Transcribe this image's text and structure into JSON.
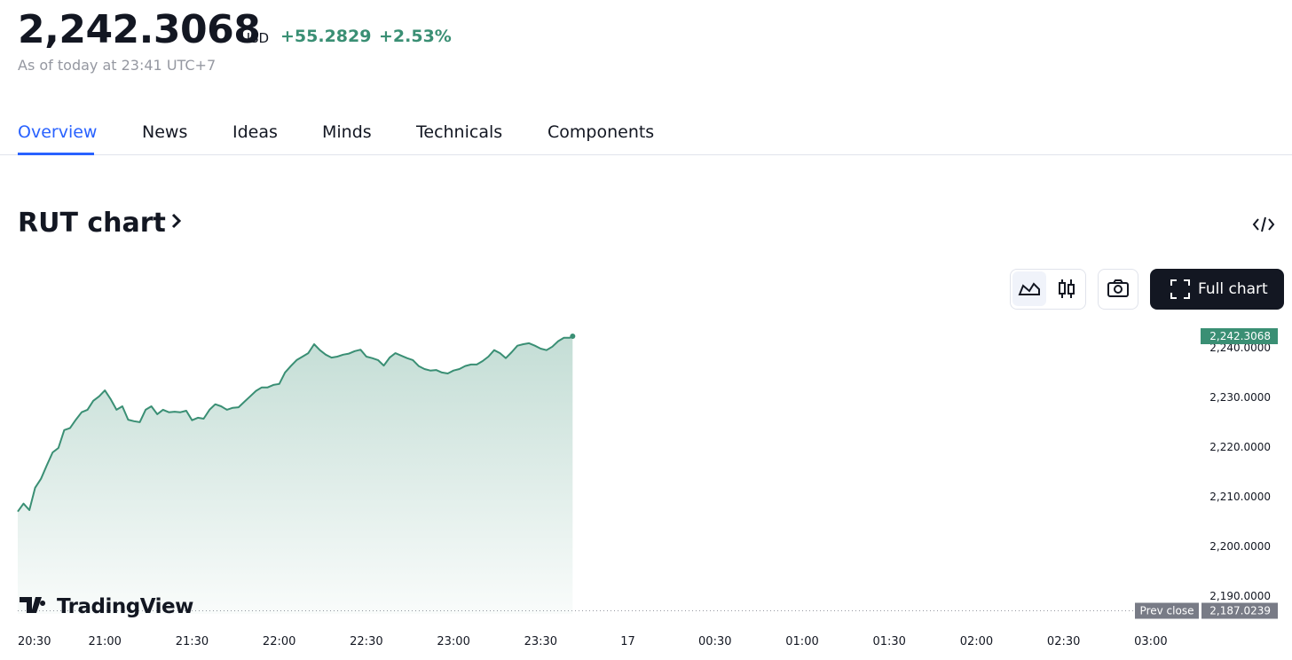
{
  "header": {
    "price": "2,242.3068",
    "currency": "USD",
    "change": "+55.2829",
    "change_pct": "+2.53%",
    "as_of": "As of today at 23:41 UTC+7"
  },
  "tabs": [
    "Overview",
    "News",
    "Ideas",
    "Minds",
    "Technicals",
    "Components"
  ],
  "section_title": "RUT chart",
  "buttons": {
    "full_chart": "Full chart"
  },
  "chart_data": {
    "type": "area",
    "color": "#3a8f74",
    "x": [
      "20:30",
      "20:32",
      "20:34",
      "20:36",
      "20:38",
      "20:40",
      "20:42",
      "20:44",
      "20:46",
      "20:48",
      "20:50",
      "20:52",
      "20:54",
      "20:56",
      "20:58",
      "21:00",
      "21:02",
      "21:04",
      "21:06",
      "21:08",
      "21:10",
      "21:12",
      "21:14",
      "21:16",
      "21:18",
      "21:20",
      "21:22",
      "21:24",
      "21:26",
      "21:28",
      "21:30",
      "21:32",
      "21:34",
      "21:36",
      "21:38",
      "21:40",
      "21:42",
      "21:44",
      "21:46",
      "21:48",
      "21:50",
      "21:52",
      "21:54",
      "21:56",
      "21:58",
      "22:00",
      "22:02",
      "22:04",
      "22:06",
      "22:08",
      "22:10",
      "22:12",
      "22:14",
      "22:16",
      "22:18",
      "22:20",
      "22:22",
      "22:24",
      "22:26",
      "22:28",
      "22:30",
      "22:32",
      "22:34",
      "22:36",
      "22:38",
      "22:40",
      "22:42",
      "22:44",
      "22:46",
      "22:48",
      "22:50",
      "22:52",
      "22:54",
      "22:56",
      "22:58",
      "23:00",
      "23:02",
      "23:04",
      "23:06",
      "23:08",
      "23:10",
      "23:12",
      "23:14",
      "23:16",
      "23:18",
      "23:20",
      "23:22",
      "23:24",
      "23:26",
      "23:28",
      "23:30",
      "23:32",
      "23:34",
      "23:36",
      "23:38",
      "23:40",
      "23:41"
    ],
    "values": [
      2207.0,
      2208.6,
      2207.3,
      2211.8,
      2213.6,
      2216.3,
      2218.9,
      2219.8,
      2223.4,
      2223.8,
      2225.5,
      2227.0,
      2227.5,
      2229.3,
      2230.2,
      2231.4,
      2229.6,
      2227.5,
      2228.2,
      2225.5,
      2225.2,
      2225.0,
      2227.5,
      2228.2,
      2226.6,
      2227.5,
      2227.0,
      2227.1,
      2227.0,
      2227.3,
      2225.4,
      2225.9,
      2225.7,
      2227.5,
      2228.6,
      2228.2,
      2227.5,
      2227.9,
      2228.0,
      2229.1,
      2230.2,
      2231.3,
      2232.0,
      2232.0,
      2232.5,
      2232.7,
      2235.0,
      2236.3,
      2237.5,
      2238.2,
      2238.9,
      2240.7,
      2239.5,
      2238.6,
      2238.0,
      2238.2,
      2238.6,
      2238.8,
      2239.3,
      2239.6,
      2238.2,
      2237.9,
      2237.5,
      2236.4,
      2238.0,
      2238.9,
      2238.4,
      2237.9,
      2237.5,
      2236.3,
      2235.7,
      2235.4,
      2235.5,
      2235.0,
      2234.8,
      2235.4,
      2235.7,
      2236.3,
      2236.6,
      2236.6,
      2237.3,
      2238.2,
      2239.5,
      2238.9,
      2237.9,
      2239.1,
      2240.4,
      2240.7,
      2240.9,
      2240.4,
      2239.8,
      2239.5,
      2240.2,
      2241.3,
      2242.0,
      2242.0,
      2242.3068
    ],
    "xlim": [
      "20:30",
      "03:15"
    ],
    "xticks": [
      "20:30",
      "21:00",
      "21:30",
      "22:00",
      "22:30",
      "23:00",
      "23:30",
      {
        "value": "00:00",
        "label": "17"
      },
      "00:30",
      "01:00",
      "01:30",
      "02:00",
      "02:30",
      "03:00"
    ],
    "ylim": [
      2186.4,
      2245.7
    ],
    "yticks": [
      {
        "value": 2190,
        "label": "2,190.0000"
      },
      {
        "value": 2200,
        "label": "2,200.0000"
      },
      {
        "value": 2210,
        "label": "2,210.0000"
      },
      {
        "value": 2220,
        "label": "2,220.0000"
      },
      {
        "value": 2230,
        "label": "2,230.0000"
      },
      {
        "value": 2240,
        "label": "2,240.0000"
      }
    ],
    "last_price": {
      "value": 2242.3068,
      "label": "2,242.3068"
    },
    "prev_close": {
      "name": "Prev close",
      "value": 2187.0239,
      "label": "2,187.0239"
    },
    "watermark": "TradingView"
  }
}
